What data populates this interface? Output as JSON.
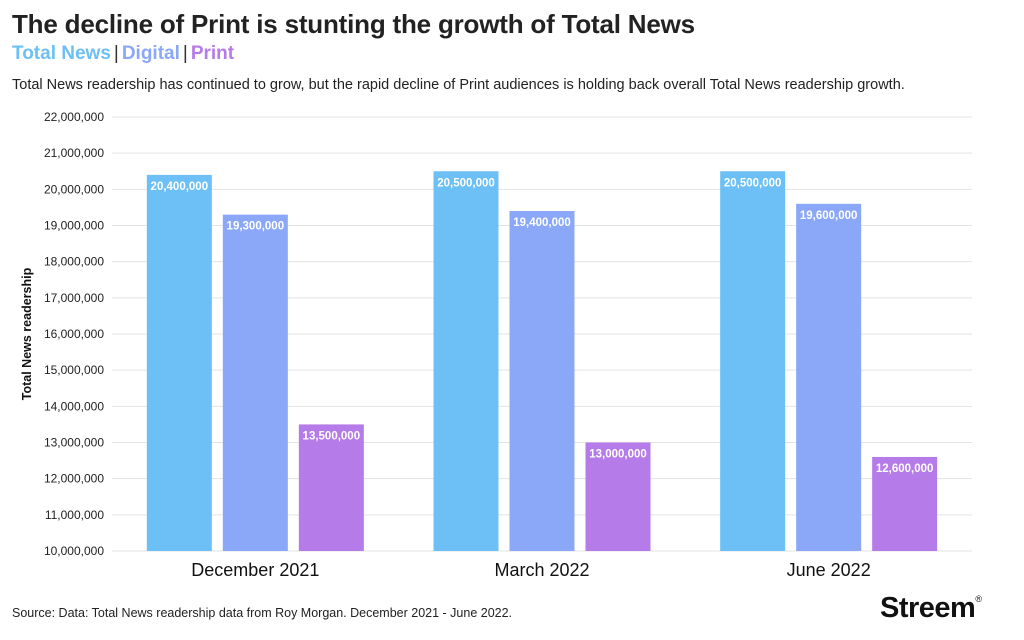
{
  "header": {
    "title": "The decline of Print is stunting the growth of Total News",
    "subtitle": "Total News readership has continued to grow, but the rapid decline of Print audiences is holding back overall Total News readership growth."
  },
  "legend": {
    "items": [
      {
        "label": "Total News",
        "color": "#6cc0f5"
      },
      {
        "label": "Digital",
        "color": "#8aa8f7"
      },
      {
        "label": "Print",
        "color": "#b57be8"
      }
    ],
    "separator": "|"
  },
  "footer": {
    "source": "Source: Data: Total News readership data from Roy Morgan. December 2021 - June 2022.",
    "brand": "Streem",
    "brand_mark": "®"
  },
  "chart_data": {
    "type": "bar",
    "categories": [
      "December 2021",
      "March 2022",
      "June 2022"
    ],
    "series": [
      {
        "name": "Total News",
        "color": "#6cc0f5",
        "values": [
          20400000,
          20500000,
          20500000
        ],
        "labels": [
          "20,400,000",
          "20,500,000",
          "20,500,000"
        ]
      },
      {
        "name": "Digital",
        "color": "#8aa8f7",
        "values": [
          19300000,
          19400000,
          19600000
        ],
        "labels": [
          "19,300,000",
          "19,400,000",
          "19,600,000"
        ]
      },
      {
        "name": "Print",
        "color": "#b57be8",
        "values": [
          13500000,
          13000000,
          12600000
        ],
        "labels": [
          "13,500,000",
          "13,000,000",
          "12,600,000"
        ]
      }
    ],
    "ylabel": "Total News readership",
    "xlabel": "",
    "ylim": [
      10000000,
      22000000
    ],
    "yticks": [
      10000000,
      11000000,
      12000000,
      13000000,
      14000000,
      15000000,
      16000000,
      17000000,
      18000000,
      19000000,
      20000000,
      21000000,
      22000000
    ],
    "ytick_labels": [
      "10,000,000",
      "11,000,000",
      "12,000,000",
      "13,000,000",
      "14,000,000",
      "15,000,000",
      "16,000,000",
      "17,000,000",
      "18,000,000",
      "19,000,000",
      "20,000,000",
      "21,000,000",
      "22,000,000"
    ],
    "grid": true,
    "legend_position": "top-left"
  }
}
